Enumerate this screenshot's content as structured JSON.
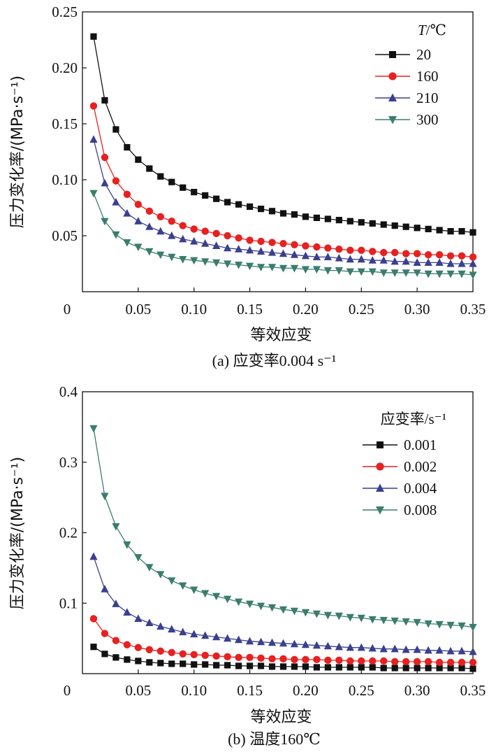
{
  "chart_data": [
    {
      "type": "line",
      "panel": "a",
      "caption": "(a) 应变率0.004 s⁻¹",
      "xlabel": "等效应变",
      "ylabel": "压力变化率/(MPa·s⁻¹)",
      "xlim": [
        0,
        0.35
      ],
      "ylim": [
        0,
        0.25
      ],
      "xticks": [
        0,
        0.05,
        0.1,
        0.15,
        0.2,
        0.25,
        0.3,
        0.35
      ],
      "xtick_labels": [
        "0",
        "0.05",
        "0.10",
        "0.15",
        "0.20",
        "0.25",
        "0.30",
        "0.35"
      ],
      "yticks": [
        0.05,
        0.1,
        0.15,
        0.2,
        0.25
      ],
      "ytick_labels": [
        "0.05",
        "0.10",
        "0.15",
        "0.20",
        "0.25"
      ],
      "legend_title": "T/℃",
      "legend_position": "top-right",
      "x": [
        0.01,
        0.02,
        0.03,
        0.04,
        0.05,
        0.06,
        0.07,
        0.08,
        0.09,
        0.1,
        0.11,
        0.12,
        0.13,
        0.14,
        0.15,
        0.16,
        0.17,
        0.18,
        0.19,
        0.2,
        0.21,
        0.22,
        0.23,
        0.24,
        0.25,
        0.26,
        0.27,
        0.28,
        0.29,
        0.3,
        0.31,
        0.32,
        0.33,
        0.34,
        0.35
      ],
      "series": [
        {
          "name": "20",
          "color": "#111111",
          "marker": "square",
          "values": [
            0.228,
            0.171,
            0.145,
            0.129,
            0.118,
            0.11,
            0.103,
            0.098,
            0.093,
            0.089,
            0.086,
            0.083,
            0.08,
            0.078,
            0.076,
            0.074,
            0.072,
            0.07,
            0.069,
            0.067,
            0.066,
            0.065,
            0.064,
            0.063,
            0.062,
            0.061,
            0.06,
            0.059,
            0.058,
            0.057,
            0.056,
            0.055,
            0.054,
            0.054,
            0.053
          ]
        },
        {
          "name": "160",
          "color": "#e8201f",
          "marker": "circle",
          "values": [
            0.166,
            0.12,
            0.099,
            0.087,
            0.078,
            0.072,
            0.067,
            0.063,
            0.059,
            0.056,
            0.054,
            0.052,
            0.05,
            0.048,
            0.046,
            0.045,
            0.044,
            0.043,
            0.042,
            0.041,
            0.04,
            0.039,
            0.038,
            0.037,
            0.037,
            0.036,
            0.035,
            0.035,
            0.034,
            0.034,
            0.033,
            0.033,
            0.032,
            0.032,
            0.031
          ]
        },
        {
          "name": "210",
          "color": "#3a3f8f",
          "marker": "triangle-up",
          "values": [
            0.136,
            0.097,
            0.08,
            0.07,
            0.063,
            0.058,
            0.054,
            0.05,
            0.047,
            0.045,
            0.043,
            0.041,
            0.039,
            0.038,
            0.037,
            0.036,
            0.035,
            0.034,
            0.033,
            0.032,
            0.031,
            0.031,
            0.03,
            0.029,
            0.029,
            0.028,
            0.028,
            0.027,
            0.027,
            0.026,
            0.026,
            0.026,
            0.025,
            0.025,
            0.025
          ]
        },
        {
          "name": "300",
          "color": "#3a7d6e",
          "marker": "triangle-down",
          "values": [
            0.088,
            0.063,
            0.051,
            0.044,
            0.04,
            0.036,
            0.033,
            0.031,
            0.029,
            0.028,
            0.027,
            0.026,
            0.025,
            0.024,
            0.023,
            0.022,
            0.022,
            0.021,
            0.021,
            0.02,
            0.02,
            0.019,
            0.019,
            0.018,
            0.018,
            0.018,
            0.017,
            0.017,
            0.017,
            0.017,
            0.016,
            0.016,
            0.016,
            0.016,
            0.015
          ]
        }
      ]
    },
    {
      "type": "line",
      "panel": "b",
      "caption": "(b) 温度160℃",
      "xlabel": "等效应变",
      "ylabel": "压力变化率/(MPa·s⁻¹)",
      "xlim": [
        0,
        0.35
      ],
      "ylim": [
        0,
        0.4
      ],
      "xticks": [
        0,
        0.05,
        0.1,
        0.15,
        0.2,
        0.25,
        0.3,
        0.35
      ],
      "xtick_labels": [
        "0",
        "0.05",
        "0.10",
        "0.15",
        "0.20",
        "0.25",
        "0.30",
        "0.35"
      ],
      "yticks": [
        0.1,
        0.2,
        0.3,
        0.4
      ],
      "ytick_labels": [
        "0.1",
        "0.2",
        "0.3",
        "0.4"
      ],
      "legend_title": "应变率/s⁻¹",
      "legend_position": "top-right",
      "x": [
        0.01,
        0.02,
        0.03,
        0.04,
        0.05,
        0.06,
        0.07,
        0.08,
        0.09,
        0.1,
        0.11,
        0.12,
        0.13,
        0.14,
        0.15,
        0.16,
        0.17,
        0.18,
        0.19,
        0.2,
        0.21,
        0.22,
        0.23,
        0.24,
        0.25,
        0.26,
        0.27,
        0.28,
        0.29,
        0.3,
        0.31,
        0.32,
        0.33,
        0.34,
        0.35
      ],
      "series": [
        {
          "name": "0.001",
          "color": "#111111",
          "marker": "square",
          "values": [
            0.038,
            0.028,
            0.023,
            0.02,
            0.018,
            0.016,
            0.015,
            0.014,
            0.014,
            0.013,
            0.013,
            0.012,
            0.012,
            0.011,
            0.011,
            0.011,
            0.01,
            0.01,
            0.01,
            0.01,
            0.009,
            0.009,
            0.009,
            0.009,
            0.009,
            0.009,
            0.008,
            0.008,
            0.008,
            0.008,
            0.008,
            0.008,
            0.008,
            0.008,
            0.007
          ]
        },
        {
          "name": "0.002",
          "color": "#e8201f",
          "marker": "circle",
          "values": [
            0.078,
            0.057,
            0.047,
            0.041,
            0.037,
            0.034,
            0.032,
            0.03,
            0.028,
            0.027,
            0.026,
            0.025,
            0.024,
            0.023,
            0.023,
            0.022,
            0.021,
            0.021,
            0.02,
            0.02,
            0.02,
            0.019,
            0.019,
            0.018,
            0.018,
            0.018,
            0.018,
            0.017,
            0.017,
            0.017,
            0.017,
            0.016,
            0.016,
            0.016,
            0.016
          ]
        },
        {
          "name": "0.004",
          "color": "#3a3f8f",
          "marker": "triangle-up",
          "values": [
            0.166,
            0.12,
            0.099,
            0.087,
            0.078,
            0.072,
            0.067,
            0.063,
            0.059,
            0.056,
            0.054,
            0.052,
            0.05,
            0.048,
            0.046,
            0.045,
            0.044,
            0.043,
            0.042,
            0.041,
            0.04,
            0.039,
            0.038,
            0.037,
            0.037,
            0.036,
            0.035,
            0.035,
            0.034,
            0.034,
            0.033,
            0.033,
            0.032,
            0.032,
            0.031
          ]
        },
        {
          "name": "0.008",
          "color": "#3a7d6e",
          "marker": "triangle-down",
          "values": [
            0.348,
            0.252,
            0.209,
            0.183,
            0.165,
            0.151,
            0.141,
            0.132,
            0.125,
            0.119,
            0.114,
            0.11,
            0.106,
            0.102,
            0.099,
            0.096,
            0.094,
            0.091,
            0.089,
            0.087,
            0.085,
            0.083,
            0.082,
            0.08,
            0.079,
            0.077,
            0.076,
            0.075,
            0.074,
            0.073,
            0.071,
            0.07,
            0.069,
            0.068,
            0.066
          ]
        }
      ]
    }
  ]
}
